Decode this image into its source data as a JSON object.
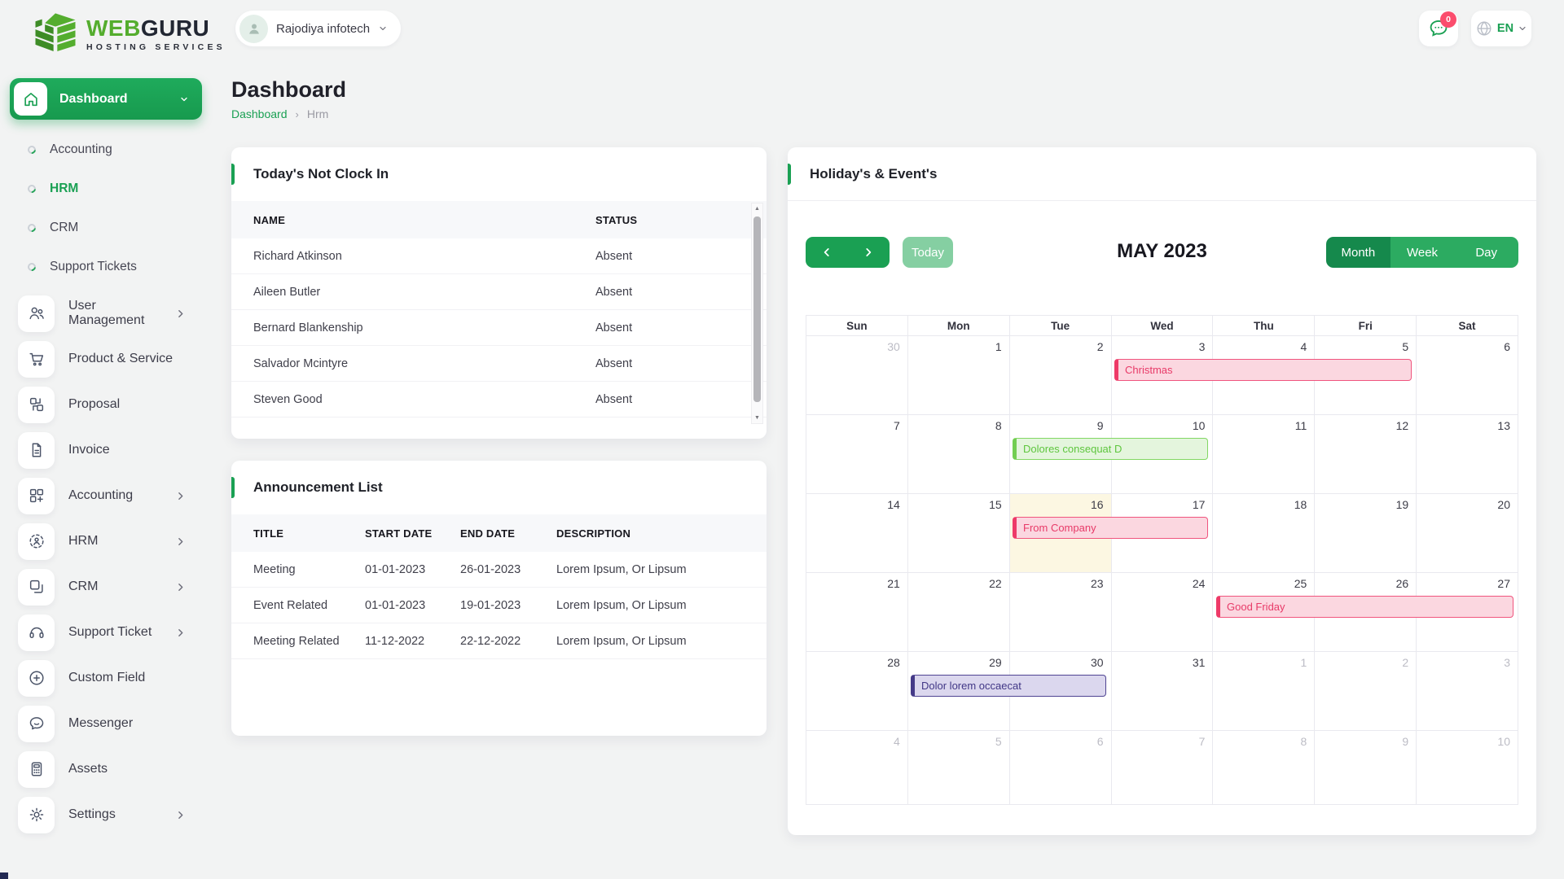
{
  "header": {
    "logo": {
      "word_green": "WEB",
      "word_dark": "GURU",
      "tagline": "HOSTING SERVICES"
    },
    "company_selector": {
      "label": "Rajodiya infotech"
    },
    "notifications": {
      "badge": "0"
    },
    "language": {
      "label": "EN"
    }
  },
  "sidebar": {
    "active_item": {
      "label": "Dashboard"
    },
    "sub_items": [
      {
        "label": "Accounting",
        "active": false
      },
      {
        "label": "HRM",
        "active": true
      },
      {
        "label": "CRM",
        "active": false
      },
      {
        "label": "Support Tickets",
        "active": false
      }
    ],
    "items": [
      {
        "label": "User Management",
        "icon": "users",
        "chevron": true
      },
      {
        "label": "Product & Service",
        "icon": "cart",
        "chevron": false
      },
      {
        "label": "Proposal",
        "icon": "swap",
        "chevron": false
      },
      {
        "label": "Invoice",
        "icon": "document",
        "chevron": false
      },
      {
        "label": "Accounting",
        "icon": "grid-plus",
        "chevron": true
      },
      {
        "label": "HRM",
        "icon": "person-dashed",
        "chevron": true
      },
      {
        "label": "CRM",
        "icon": "squares",
        "chevron": true
      },
      {
        "label": "Support Ticket",
        "icon": "headset",
        "chevron": true
      },
      {
        "label": "Custom Field",
        "icon": "plus-circle",
        "chevron": false
      },
      {
        "label": "Messenger",
        "icon": "chat",
        "chevron": false
      },
      {
        "label": "Assets",
        "icon": "calculator",
        "chevron": false
      },
      {
        "label": "Settings",
        "icon": "gear",
        "chevron": true
      }
    ]
  },
  "page": {
    "title": "Dashboard",
    "breadcrumb_link": "Dashboard",
    "breadcrumb_current": "Hrm"
  },
  "not_clock_in": {
    "title": "Today's Not Clock In",
    "columns": [
      "NAME",
      "STATUS"
    ],
    "rows": [
      [
        "Richard Atkinson",
        "Absent"
      ],
      [
        "Aileen Butler",
        "Absent"
      ],
      [
        "Bernard Blankenship",
        "Absent"
      ],
      [
        "Salvador Mcintyre",
        "Absent"
      ],
      [
        "Steven Good",
        "Absent"
      ]
    ]
  },
  "announcements": {
    "title": "Announcement List",
    "columns": [
      "TITLE",
      "START DATE",
      "END DATE",
      "DESCRIPTION"
    ],
    "rows": [
      [
        "Meeting",
        "01-01-2023",
        "26-01-2023",
        "Lorem Ipsum, Or Lipsum"
      ],
      [
        "Event Related",
        "01-01-2023",
        "19-01-2023",
        "Lorem Ipsum, Or Lipsum"
      ],
      [
        "Meeting Related",
        "11-12-2022",
        "22-12-2022",
        "Lorem Ipsum, Or Lipsum"
      ]
    ]
  },
  "calendar": {
    "card_title": "Holiday's & Event's",
    "toolbar": {
      "today_label": "Today",
      "title": "MAY 2023",
      "views": [
        "Month",
        "Week",
        "Day"
      ],
      "active_view": "Month"
    },
    "day_headers": [
      "Sun",
      "Mon",
      "Tue",
      "Wed",
      "Thu",
      "Fri",
      "Sat"
    ],
    "weeks": [
      [
        {
          "d": "30",
          "m": 1
        },
        {
          "d": "1"
        },
        {
          "d": "2"
        },
        {
          "d": "3"
        },
        {
          "d": "4"
        },
        {
          "d": "5"
        },
        {
          "d": "6"
        }
      ],
      [
        {
          "d": "7"
        },
        {
          "d": "8"
        },
        {
          "d": "9"
        },
        {
          "d": "10"
        },
        {
          "d": "11"
        },
        {
          "d": "12"
        },
        {
          "d": "13"
        }
      ],
      [
        {
          "d": "14"
        },
        {
          "d": "15"
        },
        {
          "d": "16",
          "today": 1
        },
        {
          "d": "17"
        },
        {
          "d": "18"
        },
        {
          "d": "19"
        },
        {
          "d": "20"
        }
      ],
      [
        {
          "d": "21"
        },
        {
          "d": "22"
        },
        {
          "d": "23"
        },
        {
          "d": "24"
        },
        {
          "d": "25"
        },
        {
          "d": "26"
        },
        {
          "d": "27"
        }
      ],
      [
        {
          "d": "28"
        },
        {
          "d": "29"
        },
        {
          "d": "30"
        },
        {
          "d": "31"
        },
        {
          "d": "1",
          "m": 1
        },
        {
          "d": "2",
          "m": 1
        },
        {
          "d": "3",
          "m": 1
        }
      ],
      [
        {
          "d": "4",
          "m": 1
        },
        {
          "d": "5",
          "m": 1
        },
        {
          "d": "6",
          "m": 1
        },
        {
          "d": "7",
          "m": 1
        },
        {
          "d": "8",
          "m": 1
        },
        {
          "d": "9",
          "m": 1
        },
        {
          "d": "10",
          "m": 1
        }
      ]
    ],
    "events": [
      {
        "title": "Christmas",
        "week": 0,
        "col": 3,
        "span": 3,
        "color": "pink"
      },
      {
        "title": "Dolores consequat D",
        "week": 1,
        "col": 2,
        "span": 2,
        "color": "green"
      },
      {
        "title": "From Company",
        "week": 2,
        "col": 2,
        "span": 2,
        "color": "pink"
      },
      {
        "title": "Good Friday",
        "week": 3,
        "col": 4,
        "span": 3,
        "color": "pink"
      },
      {
        "title": "Dolor lorem occaecat",
        "week": 4,
        "col": 1,
        "span": 2,
        "color": "purple"
      }
    ]
  },
  "colors": {
    "primary": "#1aa053",
    "today_bg": "#fcf7e2",
    "event_pink_bg": "#fbd7e0",
    "event_pink_border": "#f0557e",
    "event_pink_edge": "#ee3a68",
    "event_pink_text": "#e83a68",
    "event_green_bg": "#e4f5dd",
    "event_green_border": "#82d763",
    "event_green_edge": "#72ce51",
    "event_green_text": "#5ec63e",
    "event_purple_bg": "#dbd7ee",
    "event_purple_border": "#4f4492",
    "event_purple_edge": "#453a88",
    "event_purple_text": "#413786"
  }
}
